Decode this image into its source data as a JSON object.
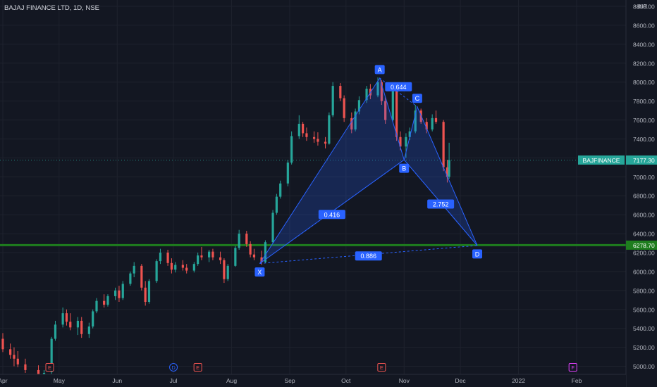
{
  "header": {
    "title": "BAJAJ FINANCE LTD, 1D, NSE",
    "currency": "INR"
  },
  "colors": {
    "background": "#131722",
    "grid": "#1e222d",
    "up": "#26a69a",
    "down": "#ef5350",
    "pattern": "#2962ff",
    "support": "#1e7d1e",
    "price_tag": "#26a69a"
  },
  "icons": {
    "earnings": "E-icon",
    "dividend": "D-icon",
    "future_earnings": "F-icon"
  },
  "chart_data": {
    "type": "candlestick",
    "symbol": "BAJFINANCE",
    "timeframe": "1D",
    "exchange": "NSE",
    "yaxis": {
      "ylim": [
        4900,
        8800
      ],
      "ticks": [
        5000,
        5200,
        5400,
        5600,
        5800,
        6000,
        6200,
        6400,
        6600,
        6800,
        7000,
        7200,
        7400,
        7600,
        7800,
        8000,
        8200,
        8400,
        8600,
        8800
      ],
      "tick_labels": [
        "5000.00",
        "5200.00",
        "5400.00",
        "5600.00",
        "5800.00",
        "6000.00",
        "6200.00",
        "6400.00",
        "6600.00",
        "6800.00",
        "7000.00",
        "7200.00",
        "7400.00",
        "7600.00",
        "7800.00",
        "8000.00",
        "8200.00",
        "8400.00",
        "8600.00",
        "8800.00"
      ]
    },
    "xaxis": {
      "start": "2021-04-01",
      "end": "2022-02-28",
      "labels": [
        {
          "label": "Apr",
          "date": "2021-04-01"
        },
        {
          "label": "May",
          "date": "2021-05-01"
        },
        {
          "label": "Jun",
          "date": "2021-06-01"
        },
        {
          "label": "Jul",
          "date": "2021-07-01"
        },
        {
          "label": "Aug",
          "date": "2021-08-01"
        },
        {
          "label": "Sep",
          "date": "2021-09-01"
        },
        {
          "label": "Oct",
          "date": "2021-10-01"
        },
        {
          "label": "Nov",
          "date": "2021-11-01"
        },
        {
          "label": "Dec",
          "date": "2021-12-01"
        },
        {
          "label": "2022",
          "date": "2022-01-01"
        },
        {
          "label": "Feb",
          "date": "2022-02-01"
        }
      ]
    },
    "price_markers": [
      {
        "symbol": "BAJFINANCE",
        "value": 7177.3,
        "label": "7177.30"
      },
      {
        "value": 6278.7,
        "label": "6278.70"
      }
    ],
    "support_line": 6278.7,
    "last_price": 7177.3,
    "harmonic_pattern": {
      "points": [
        {
          "label": "X",
          "date": "2021-08-16",
          "price": 6085
        },
        {
          "label": "A",
          "date": "2021-10-19",
          "price": 8043
        },
        {
          "label": "B",
          "date": "2021-11-01",
          "price": 7180
        },
        {
          "label": "C",
          "date": "2021-11-08",
          "price": 7740
        },
        {
          "label": "D",
          "date": "2021-12-10",
          "price": 6275
        }
      ],
      "ratios": [
        {
          "label": "0.416",
          "between": "XB"
        },
        {
          "label": "0.644",
          "between": "AC"
        },
        {
          "label": "2.752",
          "between": "BD"
        },
        {
          "label": "0.886",
          "between": "XD"
        }
      ]
    },
    "events": [
      {
        "type": "E",
        "date": "2021-04-26"
      },
      {
        "type": "D",
        "date": "2021-07-01"
      },
      {
        "type": "E",
        "date": "2021-07-14"
      },
      {
        "type": "E",
        "date": "2021-10-20"
      },
      {
        "type": "F",
        "date": "2022-01-30"
      }
    ],
    "candles": [
      {
        "d": "2021-04-01",
        "o": 5290,
        "h": 5350,
        "l": 5150,
        "c": 5180
      },
      {
        "d": "2021-04-05",
        "o": 5180,
        "h": 5240,
        "l": 5080,
        "c": 5120
      },
      {
        "d": "2021-04-07",
        "o": 5120,
        "h": 5200,
        "l": 5000,
        "c": 5080
      },
      {
        "d": "2021-04-09",
        "o": 5080,
        "h": 5160,
        "l": 4990,
        "c": 5020
      },
      {
        "d": "2021-04-13",
        "o": 5020,
        "h": 5080,
        "l": 4930,
        "c": 4960
      },
      {
        "d": "2021-04-20",
        "o": 4960,
        "h": 5010,
        "l": 4860,
        "c": 4900
      },
      {
        "d": "2021-04-23",
        "o": 4900,
        "h": 4960,
        "l": 4850,
        "c": 4930
      },
      {
        "d": "2021-04-27",
        "o": 4940,
        "h": 5310,
        "l": 4920,
        "c": 5290
      },
      {
        "d": "2021-04-29",
        "o": 5290,
        "h": 5480,
        "l": 5270,
        "c": 5440
      },
      {
        "d": "2021-05-03",
        "o": 5440,
        "h": 5620,
        "l": 5410,
        "c": 5560
      },
      {
        "d": "2021-05-05",
        "o": 5560,
        "h": 5600,
        "l": 5430,
        "c": 5470
      },
      {
        "d": "2021-05-07",
        "o": 5470,
        "h": 5560,
        "l": 5380,
        "c": 5410
      },
      {
        "d": "2021-05-11",
        "o": 5410,
        "h": 5520,
        "l": 5330,
        "c": 5480
      },
      {
        "d": "2021-05-13",
        "o": 5480,
        "h": 5520,
        "l": 5300,
        "c": 5340
      },
      {
        "d": "2021-05-17",
        "o": 5340,
        "h": 5460,
        "l": 5300,
        "c": 5420
      },
      {
        "d": "2021-05-19",
        "o": 5420,
        "h": 5600,
        "l": 5400,
        "c": 5580
      },
      {
        "d": "2021-05-21",
        "o": 5580,
        "h": 5720,
        "l": 5560,
        "c": 5690
      },
      {
        "d": "2021-05-25",
        "o": 5690,
        "h": 5760,
        "l": 5620,
        "c": 5650
      },
      {
        "d": "2021-05-27",
        "o": 5650,
        "h": 5760,
        "l": 5630,
        "c": 5740
      },
      {
        "d": "2021-05-31",
        "o": 5740,
        "h": 5830,
        "l": 5700,
        "c": 5800
      },
      {
        "d": "2021-06-02",
        "o": 5800,
        "h": 5850,
        "l": 5680,
        "c": 5720
      },
      {
        "d": "2021-06-04",
        "o": 5720,
        "h": 5900,
        "l": 5700,
        "c": 5870
      },
      {
        "d": "2021-06-08",
        "o": 5870,
        "h": 6000,
        "l": 5850,
        "c": 5980
      },
      {
        "d": "2021-06-10",
        "o": 5980,
        "h": 6100,
        "l": 5940,
        "c": 6060
      },
      {
        "d": "2021-06-14",
        "o": 6060,
        "h": 6080,
        "l": 5800,
        "c": 5830
      },
      {
        "d": "2021-06-16",
        "o": 5830,
        "h": 5900,
        "l": 5640,
        "c": 5680
      },
      {
        "d": "2021-06-18",
        "o": 5680,
        "h": 5920,
        "l": 5660,
        "c": 5900
      },
      {
        "d": "2021-06-22",
        "o": 5900,
        "h": 6130,
        "l": 5880,
        "c": 6110
      },
      {
        "d": "2021-06-24",
        "o": 6110,
        "h": 6240,
        "l": 6080,
        "c": 6200
      },
      {
        "d": "2021-06-28",
        "o": 6200,
        "h": 6230,
        "l": 6060,
        "c": 6090
      },
      {
        "d": "2021-06-30",
        "o": 6090,
        "h": 6140,
        "l": 5980,
        "c": 6020
      },
      {
        "d": "2021-07-02",
        "o": 6020,
        "h": 6100,
        "l": 5990,
        "c": 6070
      },
      {
        "d": "2021-07-06",
        "o": 6070,
        "h": 6120,
        "l": 6010,
        "c": 6040
      },
      {
        "d": "2021-07-08",
        "o": 6040,
        "h": 6080,
        "l": 5980,
        "c": 6010
      },
      {
        "d": "2021-07-12",
        "o": 6010,
        "h": 6100,
        "l": 5990,
        "c": 6080
      },
      {
        "d": "2021-07-14",
        "o": 6080,
        "h": 6200,
        "l": 6060,
        "c": 6170
      },
      {
        "d": "2021-07-16",
        "o": 6170,
        "h": 6260,
        "l": 6120,
        "c": 6150
      },
      {
        "d": "2021-07-20",
        "o": 6150,
        "h": 6230,
        "l": 6100,
        "c": 6210
      },
      {
        "d": "2021-07-22",
        "o": 6210,
        "h": 6240,
        "l": 6120,
        "c": 6150
      },
      {
        "d": "2021-07-26",
        "o": 6150,
        "h": 6210,
        "l": 6080,
        "c": 6120
      },
      {
        "d": "2021-07-28",
        "o": 6120,
        "h": 6140,
        "l": 5880,
        "c": 5920
      },
      {
        "d": "2021-07-30",
        "o": 5920,
        "h": 6080,
        "l": 5900,
        "c": 6060
      },
      {
        "d": "2021-08-03",
        "o": 6060,
        "h": 6270,
        "l": 6050,
        "c": 6250
      },
      {
        "d": "2021-08-05",
        "o": 6250,
        "h": 6440,
        "l": 6230,
        "c": 6400
      },
      {
        "d": "2021-08-09",
        "o": 6400,
        "h": 6430,
        "l": 6260,
        "c": 6290
      },
      {
        "d": "2021-08-11",
        "o": 6290,
        "h": 6320,
        "l": 6150,
        "c": 6180
      },
      {
        "d": "2021-08-13",
        "o": 6180,
        "h": 6240,
        "l": 6120,
        "c": 6150
      },
      {
        "d": "2021-08-17",
        "o": 6150,
        "h": 6220,
        "l": 6070,
        "c": 6100
      },
      {
        "d": "2021-08-19",
        "o": 6100,
        "h": 6330,
        "l": 6090,
        "c": 6310
      },
      {
        "d": "2021-08-23",
        "o": 6310,
        "h": 6650,
        "l": 6300,
        "c": 6620
      },
      {
        "d": "2021-08-25",
        "o": 6620,
        "h": 6820,
        "l": 6600,
        "c": 6790
      },
      {
        "d": "2021-08-27",
        "o": 6790,
        "h": 6960,
        "l": 6770,
        "c": 6930
      },
      {
        "d": "2021-08-31",
        "o": 6930,
        "h": 7180,
        "l": 6900,
        "c": 7150
      },
      {
        "d": "2021-09-02",
        "o": 7150,
        "h": 7480,
        "l": 7130,
        "c": 7430
      },
      {
        "d": "2021-09-06",
        "o": 7430,
        "h": 7650,
        "l": 7400,
        "c": 7560
      },
      {
        "d": "2021-09-08",
        "o": 7560,
        "h": 7580,
        "l": 7420,
        "c": 7460
      },
      {
        "d": "2021-09-10",
        "o": 7460,
        "h": 7520,
        "l": 7380,
        "c": 7420
      },
      {
        "d": "2021-09-14",
        "o": 7420,
        "h": 7480,
        "l": 7360,
        "c": 7400
      },
      {
        "d": "2021-09-16",
        "o": 7400,
        "h": 7470,
        "l": 7330,
        "c": 7370
      },
      {
        "d": "2021-09-20",
        "o": 7370,
        "h": 7420,
        "l": 7300,
        "c": 7350
      },
      {
        "d": "2021-09-22",
        "o": 7350,
        "h": 7680,
        "l": 7340,
        "c": 7650
      },
      {
        "d": "2021-09-24",
        "o": 7650,
        "h": 8000,
        "l": 7630,
        "c": 7960
      },
      {
        "d": "2021-09-28",
        "o": 7960,
        "h": 7990,
        "l": 7800,
        "c": 7830
      },
      {
        "d": "2021-09-30",
        "o": 7830,
        "h": 7860,
        "l": 7580,
        "c": 7620
      },
      {
        "d": "2021-10-04",
        "o": 7620,
        "h": 7680,
        "l": 7460,
        "c": 7500
      },
      {
        "d": "2021-10-06",
        "o": 7500,
        "h": 7720,
        "l": 7480,
        "c": 7690
      },
      {
        "d": "2021-10-08",
        "o": 7690,
        "h": 7850,
        "l": 7660,
        "c": 7810
      },
      {
        "d": "2021-10-12",
        "o": 7810,
        "h": 7960,
        "l": 7780,
        "c": 7930
      },
      {
        "d": "2021-10-14",
        "o": 7930,
        "h": 7980,
        "l": 7820,
        "c": 7860
      },
      {
        "d": "2021-10-18",
        "o": 7860,
        "h": 8050,
        "l": 7840,
        "c": 8000
      },
      {
        "d": "2021-10-20",
        "o": 8000,
        "h": 8020,
        "l": 7760,
        "c": 7800
      },
      {
        "d": "2021-10-22",
        "o": 7800,
        "h": 7840,
        "l": 7560,
        "c": 7600
      },
      {
        "d": "2021-10-26",
        "o": 7600,
        "h": 7990,
        "l": 7580,
        "c": 7950
      },
      {
        "d": "2021-10-28",
        "o": 7950,
        "h": 7960,
        "l": 7380,
        "c": 7420
      },
      {
        "d": "2021-10-30",
        "o": 7420,
        "h": 7480,
        "l": 7280,
        "c": 7320
      },
      {
        "d": "2021-11-02",
        "o": 7320,
        "h": 7460,
        "l": 7200,
        "c": 7420
      },
      {
        "d": "2021-11-04",
        "o": 7420,
        "h": 7520,
        "l": 7390,
        "c": 7480
      },
      {
        "d": "2021-11-07",
        "o": 7480,
        "h": 7760,
        "l": 7460,
        "c": 7700
      },
      {
        "d": "2021-11-10",
        "o": 7700,
        "h": 7720,
        "l": 7560,
        "c": 7580
      },
      {
        "d": "2021-11-13",
        "o": 7580,
        "h": 7620,
        "l": 7460,
        "c": 7500
      },
      {
        "d": "2021-11-16",
        "o": 7500,
        "h": 7660,
        "l": 7480,
        "c": 7620
      },
      {
        "d": "2021-11-18",
        "o": 7620,
        "h": 7700,
        "l": 7560,
        "c": 7580
      },
      {
        "d": "2021-11-22",
        "o": 7580,
        "h": 7600,
        "l": 7060,
        "c": 7100
      },
      {
        "d": "2021-11-24",
        "o": 7100,
        "h": 7180,
        "l": 6940,
        "c": 7000
      },
      {
        "d": "2021-11-25",
        "o": 7000,
        "h": 7360,
        "l": 6980,
        "c": 7177.3
      }
    ]
  }
}
